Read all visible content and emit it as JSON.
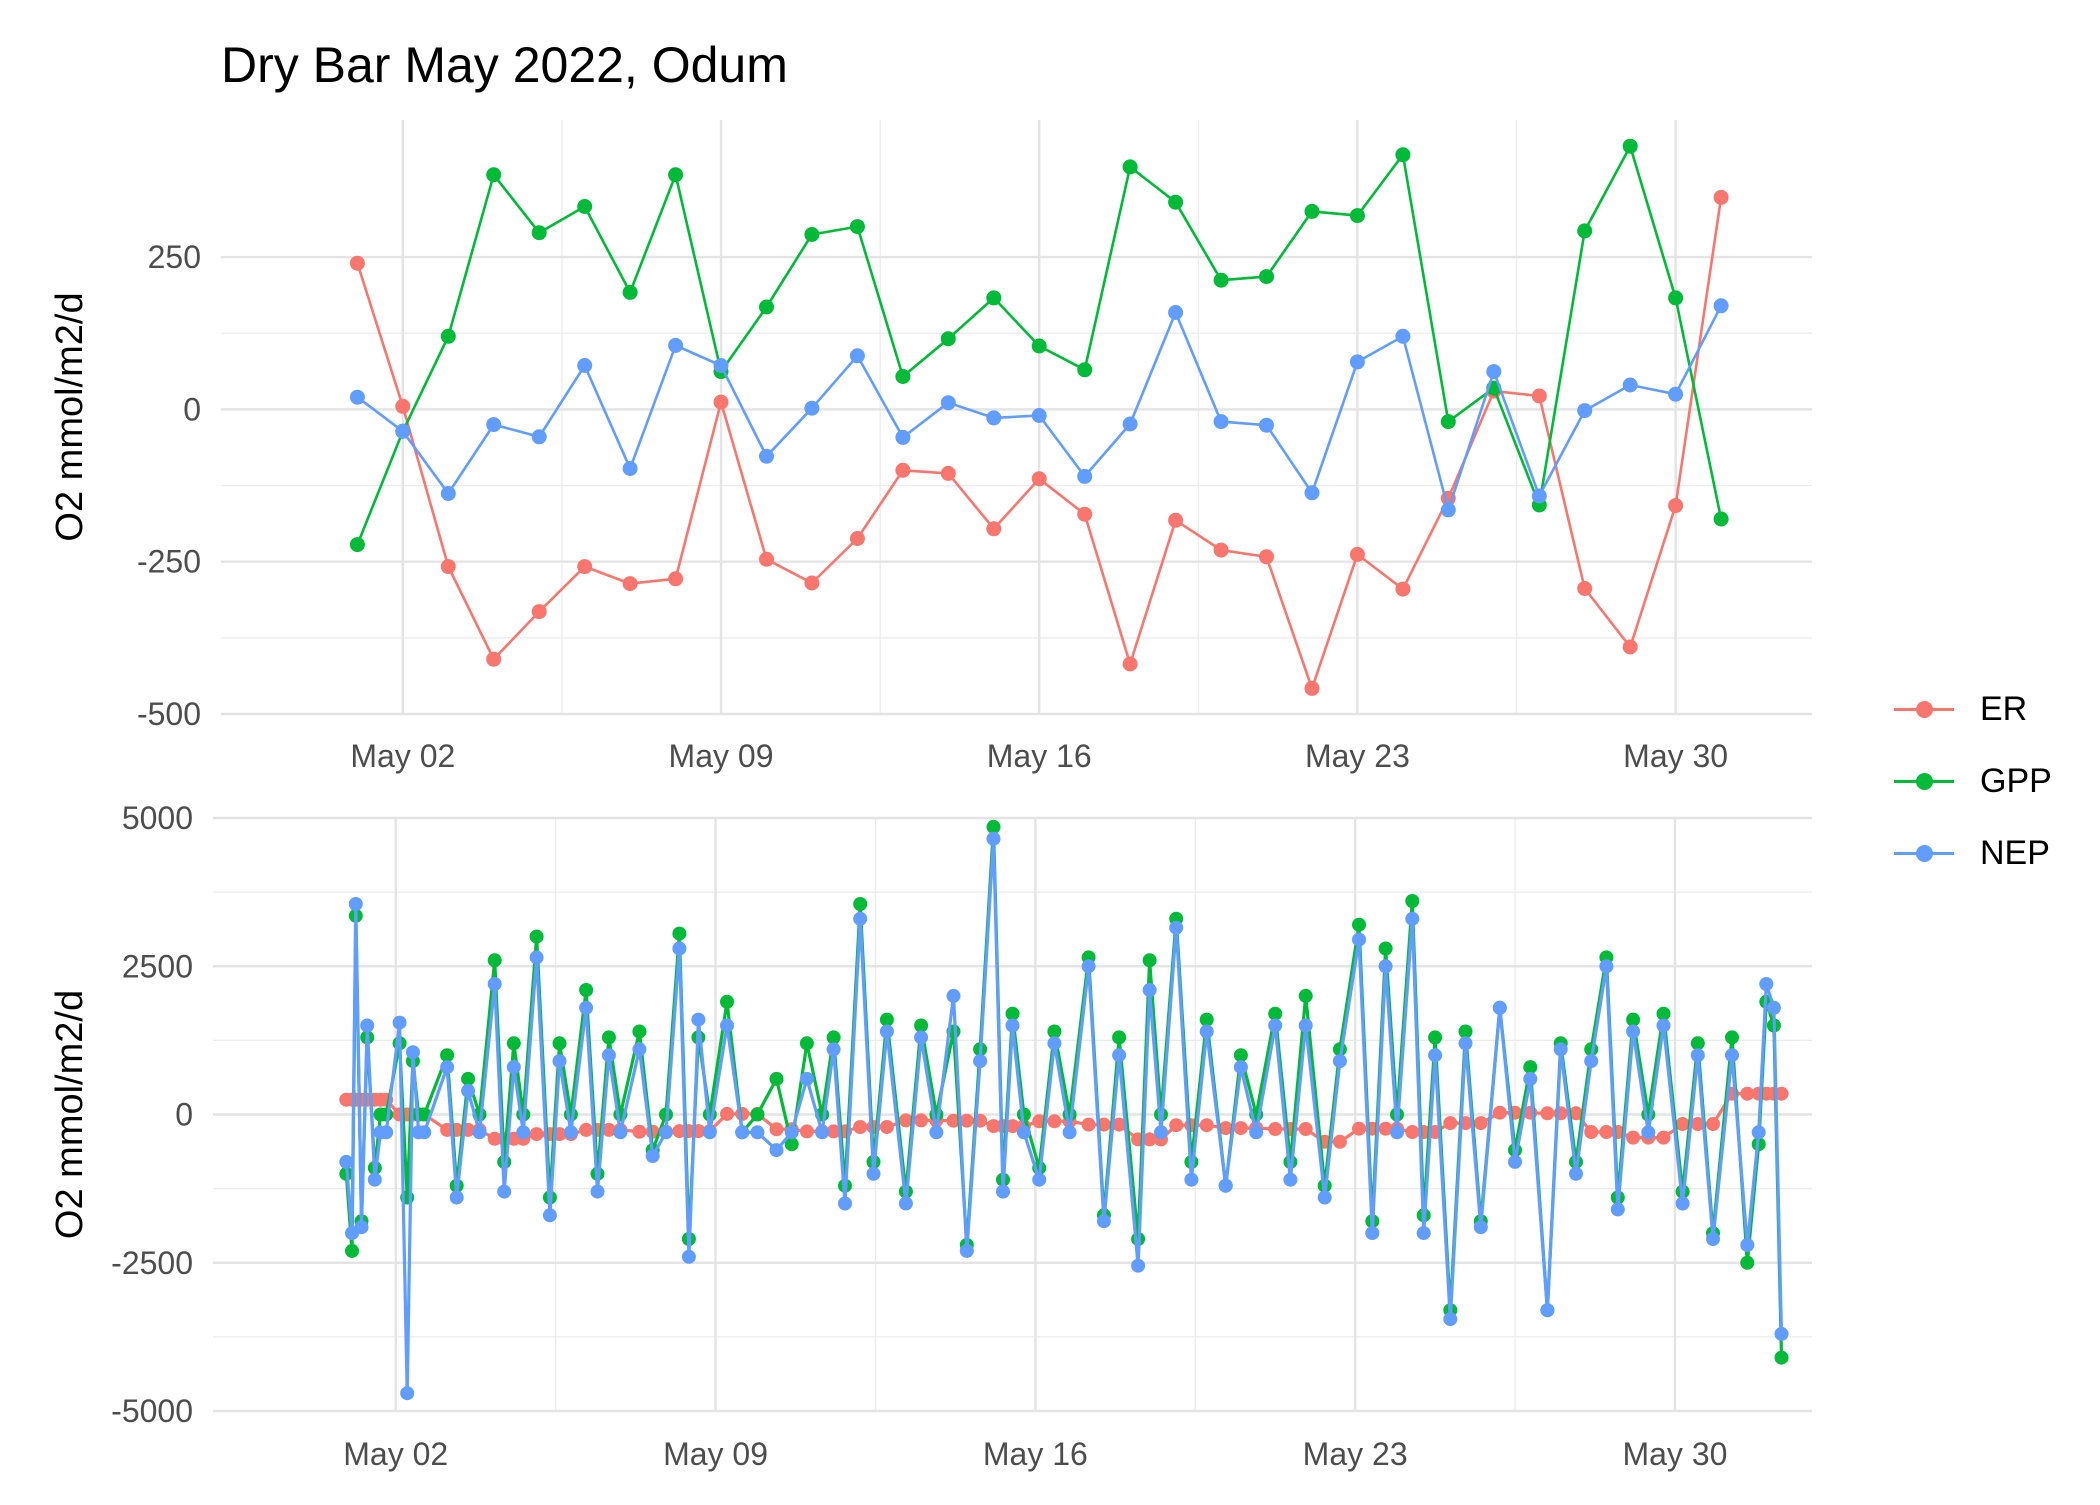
{
  "title": "Dry Bar May 2022, Odum",
  "colors": {
    "ER": "#F8766D",
    "GPP": "#00BA38",
    "NEP": "#619CFF"
  },
  "legend": [
    {
      "label": "ER",
      "color": "#F8766D"
    },
    {
      "label": "GPP",
      "color": "#00BA38"
    },
    {
      "label": "NEP",
      "color": "#619CFF"
    }
  ],
  "chart_data": [
    {
      "type": "line",
      "ylabel": "O2 mmol/m2/d",
      "xlabel": "",
      "xlim": [
        "2022-04-28",
        "2022-06-02"
      ],
      "ylim": [
        -500,
        475
      ],
      "x_ticks": [
        "2022-05-02",
        "2022-05-09",
        "2022-05-16",
        "2022-05-23",
        "2022-05-30"
      ],
      "x_tick_labels": [
        "May 02",
        "May 09",
        "May 16",
        "May 23",
        "May 30"
      ],
      "y_ticks": [
        -500,
        -250,
        0,
        250
      ],
      "y_tick_labels": [
        "-500",
        "-250",
        "0",
        "250"
      ],
      "grid": true,
      "legend_position": "right",
      "x": [
        "2022-05-01",
        "2022-05-02",
        "2022-05-03",
        "2022-05-04",
        "2022-05-05",
        "2022-05-06",
        "2022-05-07",
        "2022-05-08",
        "2022-05-09",
        "2022-05-10",
        "2022-05-11",
        "2022-05-12",
        "2022-05-13",
        "2022-05-14",
        "2022-05-15",
        "2022-05-16",
        "2022-05-17",
        "2022-05-18",
        "2022-05-19",
        "2022-05-20",
        "2022-05-21",
        "2022-05-22",
        "2022-05-23",
        "2022-05-24",
        "2022-05-25",
        "2022-05-26",
        "2022-05-27",
        "2022-05-28",
        "2022-05-29",
        "2022-05-30",
        "2022-05-31"
      ],
      "series": [
        {
          "name": "ER",
          "values": [
            240,
            5,
            -258,
            -410,
            -332,
            -258,
            -286,
            -278,
            12,
            -246,
            -285,
            -212,
            -100,
            -105,
            -196,
            -114,
            -172,
            -418,
            -182,
            -231,
            -242,
            -458,
            -238,
            -295,
            -146,
            30,
            22,
            -294,
            -390,
            -158,
            348
          ]
        },
        {
          "name": "GPP",
          "values": [
            -222,
            -36,
            120,
            385,
            290,
            333,
            192,
            385,
            62,
            168,
            287,
            300,
            54,
            116,
            183,
            104,
            65,
            398,
            340,
            212,
            218,
            325,
            318,
            418,
            -20,
            35,
            -157,
            293,
            432,
            183,
            -180
          ]
        },
        {
          "name": "NEP",
          "values": [
            20,
            -36,
            -138,
            -25,
            -45,
            72,
            -97,
            105,
            72,
            -77,
            2,
            88,
            -46,
            11,
            -14,
            -10,
            -110,
            -24,
            159,
            -20,
            -26,
            -137,
            78,
            120,
            -165,
            62,
            -142,
            -2,
            40,
            25,
            170
          ]
        }
      ]
    },
    {
      "type": "line",
      "ylabel": "O2 mmol/m2/d",
      "xlabel": "",
      "xlim": [
        "2022-04-28",
        "2022-06-02"
      ],
      "ylim": [
        -5000,
        5000
      ],
      "x_ticks": [
        "2022-05-02",
        "2022-05-09",
        "2022-05-16",
        "2022-05-23",
        "2022-05-30"
      ],
      "x_tick_labels": [
        "May 02",
        "May 09",
        "May 16",
        "May 23",
        "May 30"
      ],
      "y_ticks": [
        -5000,
        -2500,
        0,
        2500,
        5000
      ],
      "y_tick_labels": [
        "-5000",
        "-2500",
        "0",
        "2500",
        "5000"
      ],
      "grid": true,
      "legend_position": "right",
      "x": [
        "2022-04-30 22:00",
        "2022-05-01 01:00",
        "2022-05-01 03:00",
        "2022-05-01 06:00",
        "2022-05-01 09:00",
        "2022-05-01 13:00",
        "2022-05-01 16:00",
        "2022-05-01 19:00",
        "2022-05-02 02:00",
        "2022-05-02 06:00",
        "2022-05-02 09:00",
        "2022-05-02 12:00",
        "2022-05-02 15:00",
        "2022-05-03 03:00",
        "2022-05-03 08:00",
        "2022-05-03 14:00",
        "2022-05-03 20:00",
        "2022-05-04 04:00",
        "2022-05-04 09:00",
        "2022-05-04 14:00",
        "2022-05-04 19:00",
        "2022-05-05 02:00",
        "2022-05-05 09:00",
        "2022-05-05 14:00",
        "2022-05-05 20:00",
        "2022-05-06 04:00",
        "2022-05-06 10:00",
        "2022-05-06 16:00",
        "2022-05-06 22:00",
        "2022-05-07 08:00",
        "2022-05-07 15:00",
        "2022-05-07 22:00",
        "2022-05-08 05:00",
        "2022-05-08 10:00",
        "2022-05-08 15:00",
        "2022-05-08 21:00",
        "2022-05-09 06:00",
        "2022-05-09 14:00",
        "2022-05-09 22:00",
        "2022-05-10 08:00",
        "2022-05-10 16:00",
        "2022-05-11 00:00",
        "2022-05-11 08:00",
        "2022-05-11 14:00",
        "2022-05-11 20:00",
        "2022-05-12 04:00",
        "2022-05-12 11:00",
        "2022-05-12 18:00",
        "2022-05-13 04:00",
        "2022-05-13 12:00",
        "2022-05-13 20:00",
        "2022-05-14 05:00",
        "2022-05-14 12:00",
        "2022-05-14 19:00",
        "2022-05-15 02:00",
        "2022-05-15 07:00",
        "2022-05-15 12:00",
        "2022-05-15 18:00",
        "2022-05-16 02:00",
        "2022-05-16 10:00",
        "2022-05-16 18:00",
        "2022-05-17 04:00",
        "2022-05-17 12:00",
        "2022-05-17 20:00",
        "2022-05-18 06:00",
        "2022-05-18 12:00",
        "2022-05-18 18:00",
        "2022-05-19 02:00",
        "2022-05-19 10:00",
        "2022-05-19 18:00",
        "2022-05-20 04:00",
        "2022-05-20 12:00",
        "2022-05-20 20:00",
        "2022-05-21 06:00",
        "2022-05-21 14:00",
        "2022-05-21 22:00",
        "2022-05-22 08:00",
        "2022-05-22 16:00",
        "2022-05-23 02:00",
        "2022-05-23 09:00",
        "2022-05-23 16:00",
        "2022-05-23 22:00",
        "2022-05-24 06:00",
        "2022-05-24 12:00",
        "2022-05-24 18:00",
        "2022-05-25 02:00",
        "2022-05-25 10:00",
        "2022-05-25 18:00",
        "2022-05-26 04:00",
        "2022-05-26 12:00",
        "2022-05-26 20:00",
        "2022-05-27 05:00",
        "2022-05-27 12:00",
        "2022-05-27 20:00",
        "2022-05-28 04:00",
        "2022-05-28 12:00",
        "2022-05-28 18:00",
        "2022-05-29 02:00",
        "2022-05-29 10:00",
        "2022-05-29 18:00",
        "2022-05-30 04:00",
        "2022-05-30 12:00",
        "2022-05-30 20:00",
        "2022-05-31 06:00",
        "2022-05-31 14:00",
        "2022-05-31 20:00",
        "2022-06-01 00:00",
        "2022-06-01 04:00",
        "2022-06-01 08:00"
      ],
      "series": [
        {
          "name": "ER",
          "values": [
            250,
            250,
            250,
            250,
            250,
            250,
            250,
            250,
            0,
            0,
            0,
            0,
            0,
            -260,
            -260,
            -260,
            -260,
            -410,
            -410,
            -410,
            -410,
            -330,
            -330,
            -330,
            -330,
            -260,
            -260,
            -260,
            -260,
            -290,
            -290,
            -290,
            -280,
            -280,
            -280,
            -280,
            10,
            10,
            10,
            -250,
            -250,
            -285,
            -285,
            -285,
            -285,
            -210,
            -210,
            -210,
            -100,
            -100,
            -100,
            -105,
            -105,
            -105,
            -195,
            -195,
            -195,
            -195,
            -115,
            -115,
            -115,
            -170,
            -170,
            -170,
            -420,
            -420,
            -420,
            -180,
            -180,
            -180,
            -230,
            -230,
            -230,
            -245,
            -245,
            -245,
            -460,
            -460,
            -240,
            -240,
            -240,
            -240,
            -295,
            -295,
            -295,
            -145,
            -145,
            -145,
            30,
            30,
            30,
            20,
            20,
            20,
            -295,
            -295,
            -295,
            -390,
            -390,
            -390,
            -160,
            -160,
            -160,
            350,
            350,
            350,
            350,
            350,
            350
          ]
        },
        {
          "name": "GPP",
          "values": [
            -1000,
            -2300,
            3350,
            -1800,
            1300,
            -900,
            0,
            0,
            1200,
            -1400,
            900,
            0,
            0,
            1000,
            -1200,
            600,
            0,
            2600,
            -800,
            1200,
            0,
            3000,
            -1400,
            1200,
            0,
            2100,
            -1000,
            1300,
            0,
            1400,
            -600,
            0,
            3050,
            -2100,
            1300,
            0,
            1900,
            -300,
            0,
            600,
            -500,
            1200,
            0,
            1300,
            -1200,
            3550,
            -800,
            1600,
            -1300,
            1500,
            0,
            1400,
            -2200,
            1100,
            4850,
            -1100,
            1700,
            0,
            -900,
            1400,
            0,
            2650,
            -1700,
            1300,
            -2100,
            2600,
            0,
            3300,
            -800,
            1600,
            -1200,
            1000,
            0,
            1700,
            -800,
            2000,
            -1200,
            1100,
            3200,
            -1800,
            2800,
            0,
            3600,
            -1700,
            1300,
            -3300,
            1400,
            -1800,
            1800,
            -600,
            800,
            -3300,
            1200,
            -800,
            1100,
            2650,
            -1400,
            1600,
            0,
            1700,
            -1300,
            1200,
            -2000,
            1300,
            -2500,
            -500,
            1900,
            1500,
            -4100
          ]
        },
        {
          "name": "NEP",
          "values": [
            -800,
            -2000,
            3550,
            -1900,
            1500,
            -1100,
            -300,
            -300,
            1550,
            -4700,
            1050,
            -300,
            -300,
            800,
            -1400,
            400,
            -300,
            2200,
            -1300,
            800,
            -300,
            2650,
            -1700,
            900,
            -300,
            1800,
            -1300,
            1000,
            -300,
            1100,
            -700,
            -300,
            2800,
            -2400,
            1600,
            -300,
            1500,
            -300,
            -300,
            -600,
            -300,
            600,
            -300,
            1100,
            -1500,
            3300,
            -1000,
            1400,
            -1500,
            1300,
            -300,
            2000,
            -2300,
            900,
            4650,
            -1300,
            1500,
            -300,
            -1100,
            1200,
            -300,
            2500,
            -1800,
            1000,
            -2550,
            2100,
            -300,
            3150,
            -1100,
            1400,
            -1200,
            800,
            -300,
            1500,
            -1100,
            1500,
            -1400,
            900,
            2950,
            -2000,
            2500,
            -300,
            3300,
            -2000,
            1000,
            -3450,
            1200,
            -1900,
            1800,
            -800,
            600,
            -3300,
            1100,
            -1000,
            900,
            2500,
            -1600,
            1400,
            -300,
            1500,
            -1500,
            1000,
            -2100,
            1000,
            -2200,
            -300,
            2200,
            1800,
            -3700
          ]
        }
      ]
    }
  ]
}
